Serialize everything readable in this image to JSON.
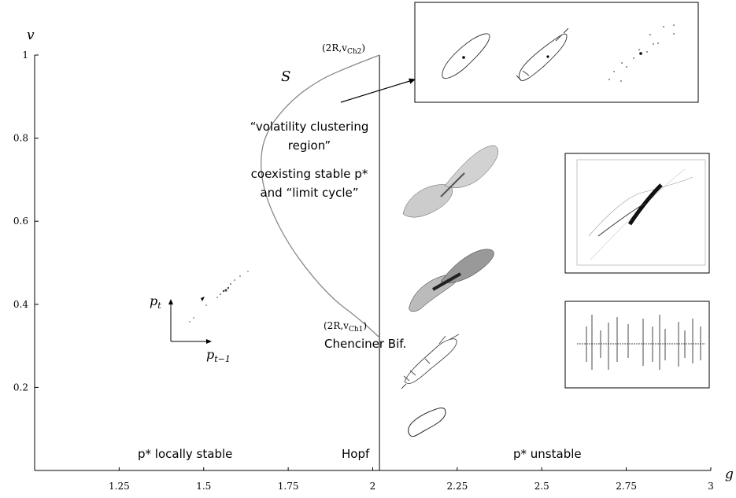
{
  "chart_data": {
    "type": "diagram",
    "xlabel": "g",
    "ylabel": "v",
    "xlim": [
      1.0,
      3.0
    ],
    "ylim": [
      0.0,
      1.0
    ],
    "x_ticks": [
      {
        "v": 1.25,
        "label": "1.25"
      },
      {
        "v": 1.5,
        "label": "1.5"
      },
      {
        "v": 1.75,
        "label": "1.75"
      },
      {
        "v": 2.0,
        "label": "2"
      },
      {
        "v": 2.25,
        "label": "2.25"
      },
      {
        "v": 2.5,
        "label": "2.5"
      },
      {
        "v": 2.75,
        "label": "2.75"
      },
      {
        "v": 3.0,
        "label": "3"
      }
    ],
    "y_ticks": [
      {
        "v": 0.2,
        "label": "0.2"
      },
      {
        "v": 0.4,
        "label": "0.4"
      },
      {
        "v": 0.6,
        "label": "0.6"
      },
      {
        "v": 0.8,
        "label": "0.8"
      },
      {
        "v": 1.0,
        "label": "1"
      }
    ],
    "hopf_line_g": 2.02,
    "s_curve": [
      [
        2.02,
        1.0
      ],
      [
        1.94,
        0.975
      ],
      [
        1.84,
        0.94
      ],
      [
        1.75,
        0.885
      ],
      [
        1.68,
        0.81
      ],
      [
        1.665,
        0.73
      ],
      [
        1.69,
        0.64
      ],
      [
        1.76,
        0.53
      ],
      [
        1.87,
        0.42
      ],
      [
        1.96,
        0.365
      ],
      [
        2.02,
        0.32
      ]
    ]
  },
  "labels": {
    "curve_S": "S",
    "point_ch2": "(2R,v",
    "point_ch2_sub": "Ch2",
    "point_ch1": "(2R,v",
    "point_ch1_sub": "Ch1",
    "point_close": ")",
    "chenciner": "Chenciner Bif.",
    "volatility_line1": "“volatility clustering",
    "volatility_line2": "region”",
    "coexisting_line1": "coexisting stable p*",
    "coexisting_line2": "and “limit cycle”",
    "hopf": "Hopf",
    "locally_stable": "p* locally stable",
    "unstable": "p* unstable",
    "axis_pt": "p",
    "axis_pt_sub": "t",
    "axis_pt1": "p",
    "axis_pt1_sub": "t−1"
  }
}
